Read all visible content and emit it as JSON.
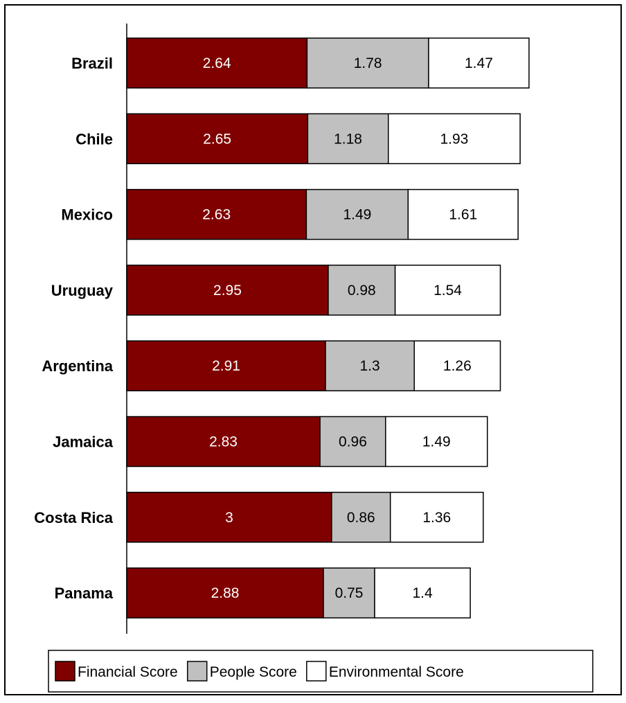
{
  "chart_data": {
    "type": "bar",
    "orientation": "horizontal",
    "stacked": true,
    "categories": [
      "Brazil",
      "Chile",
      "Mexico",
      "Uruguay",
      "Argentina",
      "Jamaica",
      "Costa Rica",
      "Panama"
    ],
    "series": [
      {
        "name": "Financial Score",
        "values": [
          2.64,
          2.65,
          2.63,
          2.95,
          2.91,
          2.83,
          3,
          2.88
        ],
        "labels": [
          "2.64",
          "2.65",
          "2.63",
          "2.95",
          "2.91",
          "2.83",
          "3",
          "2.88"
        ],
        "color": "#800000",
        "label_color": "#ffffff"
      },
      {
        "name": "People Score",
        "values": [
          1.78,
          1.18,
          1.49,
          0.98,
          1.3,
          0.96,
          0.86,
          0.75
        ],
        "labels": [
          "1.78",
          "1.18",
          "1.49",
          "0.98",
          "1.3",
          "0.96",
          "0.86",
          "0.75"
        ],
        "color": "#c0c0c0",
        "label_color": "#000000"
      },
      {
        "name": "Environmental Score",
        "values": [
          1.47,
          1.93,
          1.61,
          1.54,
          1.26,
          1.49,
          1.36,
          1.4
        ],
        "labels": [
          "1.47",
          "1.93",
          "1.61",
          "1.54",
          "1.26",
          "1.49",
          "1.36",
          "1.4"
        ],
        "color": "#ffffff",
        "label_color": "#000000"
      }
    ],
    "title": "",
    "xlabel": "",
    "ylabel": "",
    "xlim": [
      0,
      7.3
    ],
    "grid": false,
    "legend_position": "bottom"
  }
}
